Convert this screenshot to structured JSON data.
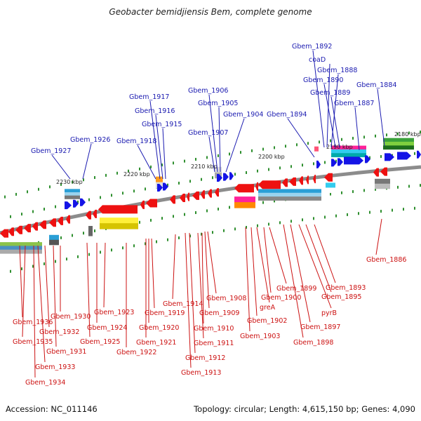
{
  "title": "Geobacter bemidjiensis Bem, complete genome",
  "footer": {
    "accession": "Accession: NC_011146",
    "info": "Topology: circular; Length: 4,615,150 bp; Genes: 4,090"
  },
  "colors": {
    "forward_gene": "#1414e6",
    "reverse_gene": "#ee1111",
    "forward_label": "#1a1ab0",
    "reverse_label": "#cc1111",
    "backbone": "#8c8c8c",
    "dots": "#2f8f2f"
  },
  "ticks": [
    "2230 kbp",
    "2220 kbp",
    "2210 kbp",
    "2200 kbp",
    "2190 kbp",
    "2180 kbp"
  ],
  "forward_labels": [
    "Gbem_1927",
    "Gbem_1926",
    "Gbem_1918",
    "Gbem_1917",
    "Gbem_1916",
    "Gbem_1915",
    "Gbem_1907",
    "Gbem_1906",
    "Gbem_1905",
    "Gbem_1904",
    "Gbem_1894",
    "Gbem_1892",
    "coaD",
    "Gbem_1888",
    "Gbem_1890",
    "Gbem_1889",
    "Gbem_1887",
    "Gbem_1884"
  ],
  "reverse_labels": [
    "Gbem_1936",
    "Gbem_1935",
    "Gbem_1934",
    "Gbem_1933",
    "Gbem_1932",
    "Gbem_1931",
    "Gbem_1930",
    "Gbem_1925",
    "Gbem_1924",
    "Gbem_1923",
    "Gbem_1922",
    "Gbem_1921",
    "Gbem_1920",
    "Gbem_1919",
    "Gbem_1914",
    "Gbem_1913",
    "Gbem_1912",
    "Gbem_1911",
    "Gbem_1910",
    "Gbem_1909",
    "Gbem_1908",
    "Gbem_1903",
    "Gbem_1902",
    "greA",
    "Gbem_1900",
    "Gbem_1899",
    "Gbem_1898",
    "Gbem_1897",
    "pyrB",
    "Gbem_1895",
    "Gbem_1893",
    "Gbem_1886"
  ]
}
